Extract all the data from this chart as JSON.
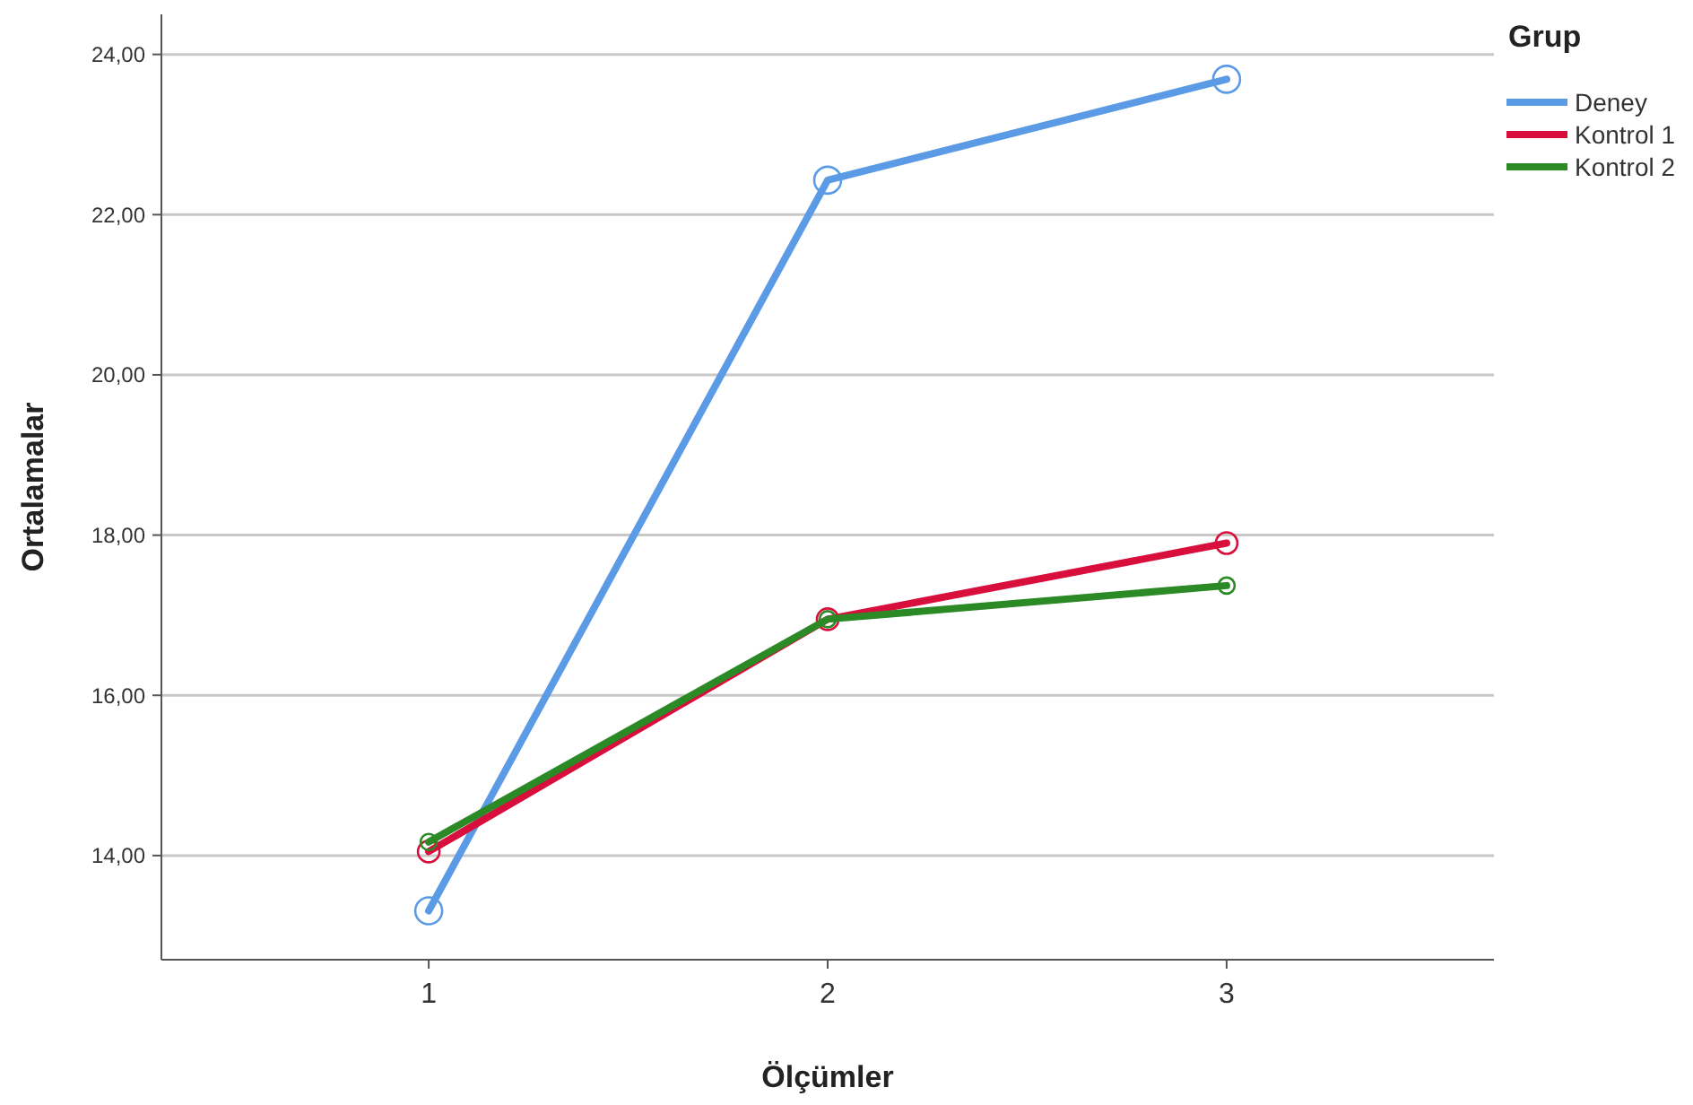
{
  "chart_data": {
    "type": "line",
    "xlabel": "Ölçümler",
    "ylabel": "Ortalamalar",
    "legend_title": "Grup",
    "categories": [
      "1",
      "2",
      "3"
    ],
    "series": [
      {
        "name": "Deney",
        "color": "#5b9be6",
        "values": [
          13.31,
          22.43,
          23.69
        ]
      },
      {
        "name": "Kontrol 1",
        "color": "#d80f3c",
        "values": [
          14.05,
          16.95,
          17.9
        ]
      },
      {
        "name": "Kontrol 2",
        "color": "#2b8a26",
        "values": [
          14.17,
          16.95,
          17.37
        ]
      }
    ],
    "ylim": [
      12.7,
      24.5
    ],
    "yticks": [
      {
        "value": 14,
        "label": "14,00"
      },
      {
        "value": 16,
        "label": "16,00"
      },
      {
        "value": 18,
        "label": "18,00"
      },
      {
        "value": 20,
        "label": "20,00"
      },
      {
        "value": 22,
        "label": "22,00"
      },
      {
        "value": 24,
        "label": "24,00"
      }
    ],
    "grid": "y",
    "legend": "top right",
    "marker": "circle",
    "line_style": "solid"
  }
}
